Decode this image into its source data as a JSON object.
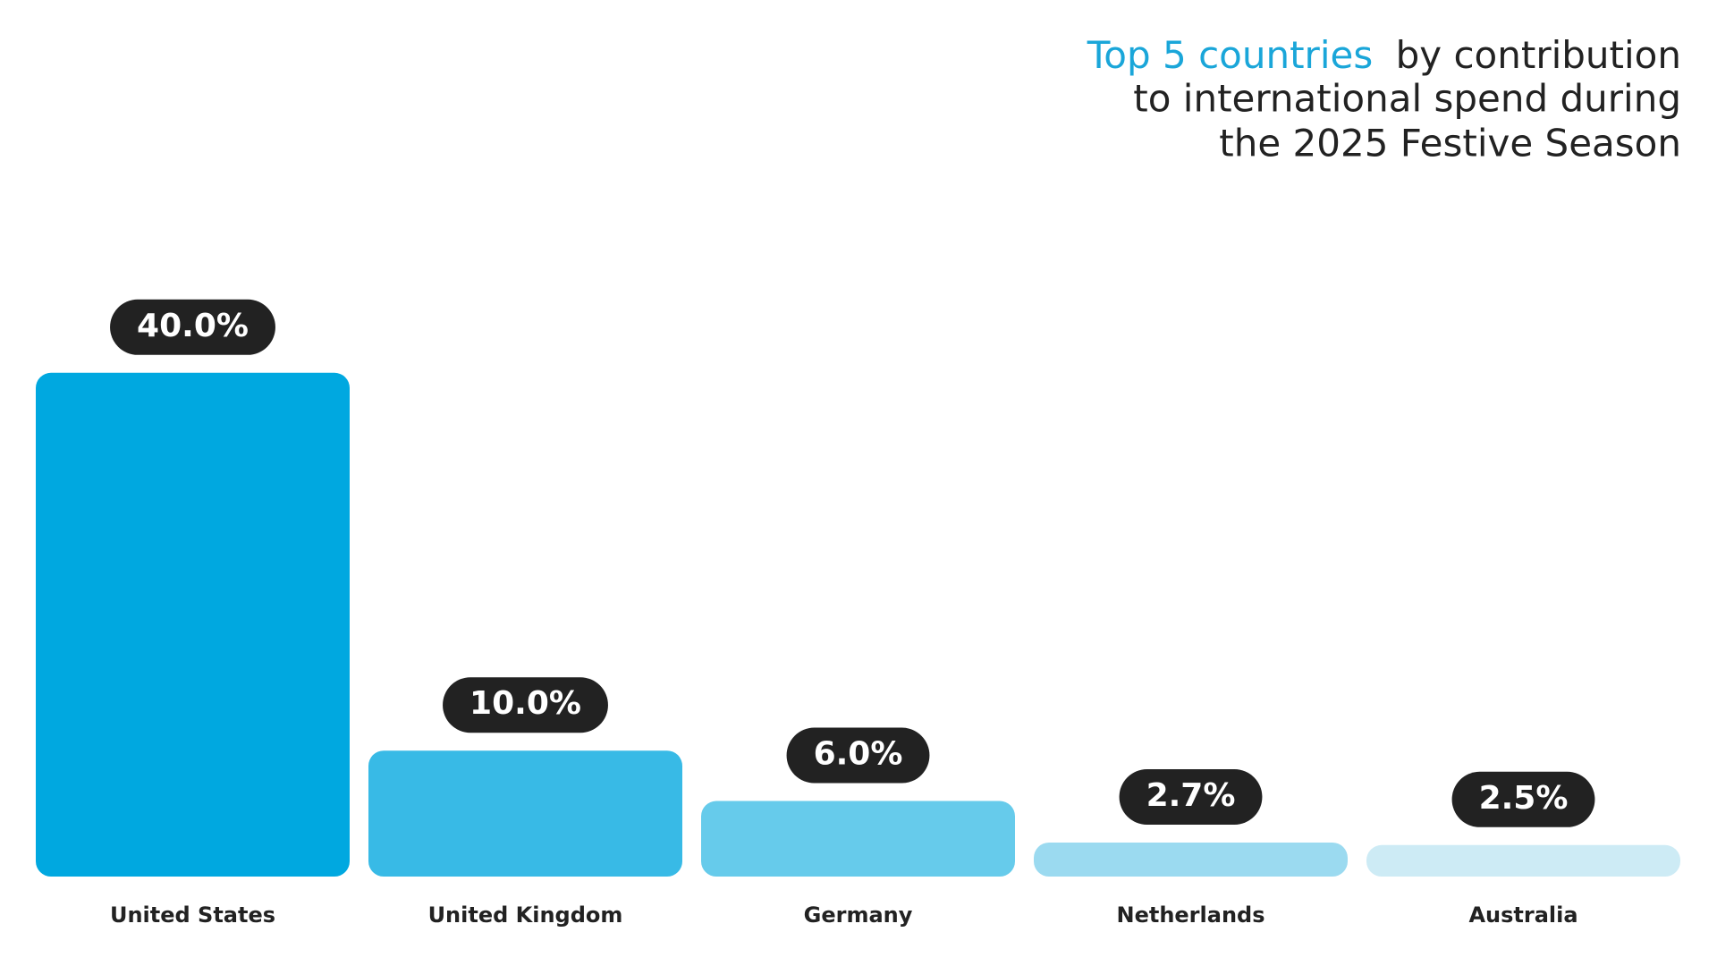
{
  "chart_data": {
    "type": "bar",
    "title_highlight": "Top 5 countries",
    "title_lines": [
      "by contribution",
      "to international spend during",
      "the 2025 Festive Season"
    ],
    "categories": [
      "United States",
      "United Kingdom",
      "Germany",
      "Netherlands",
      "Australia"
    ],
    "values": [
      40.0,
      10.0,
      6.0,
      2.7,
      2.5
    ],
    "value_labels": [
      "40.0%",
      "10.0%",
      "6.0%",
      "2.7%",
      "2.5%"
    ],
    "colors": [
      "#00a8e0",
      "#38bae6",
      "#66cbeb",
      "#9bdaf0",
      "#cdebf5"
    ]
  }
}
